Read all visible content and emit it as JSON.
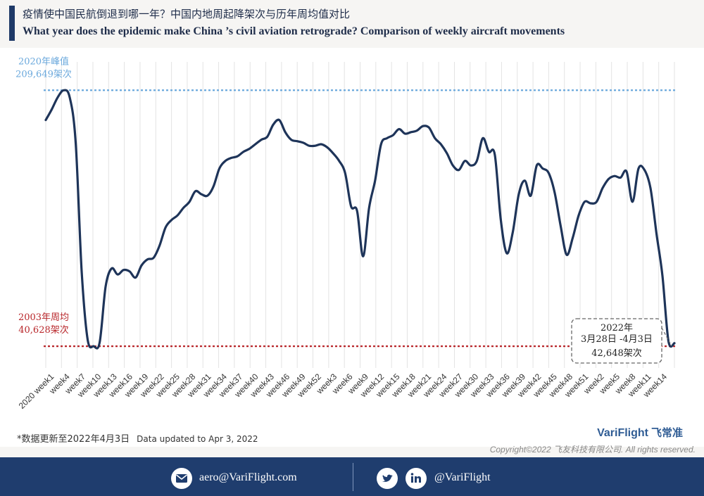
{
  "header": {
    "title_cn": "疫情使中国民航倒退到哪一年？中国内地周起降架次与历年周均值对比",
    "title_en": "What year does the epidemic make China ’s civil aviation retrograde? Comparison of weekly aircraft movements"
  },
  "chart_data": {
    "type": "line",
    "title": "",
    "xlabel": "",
    "ylabel": "",
    "ylim": [
      30000,
      220000
    ],
    "grid": "vertical",
    "x_tick_labels": [
      "2020 week1",
      "week4",
      "week7",
      "week10",
      "week13",
      "week16",
      "week19",
      "week22",
      "week25",
      "week28",
      "week31",
      "week34",
      "week37",
      "week40",
      "week43",
      "week46",
      "week49",
      "week52",
      "week3",
      "week6",
      "week9",
      "week12",
      "week15",
      "week18",
      "week21",
      "week24",
      "week27",
      "week30",
      "week33",
      "week36",
      "week39",
      "week42",
      "week45",
      "week48",
      "week51",
      "week2",
      "week5",
      "week8",
      "week11",
      "week14"
    ],
    "series": [
      {
        "name": "",
        "color": "#1e3459",
        "values": [
          190000,
          197000,
          205000,
          209649,
          205000,
          175000,
          90000,
          45000,
          40628,
          43000,
          80000,
          92000,
          88000,
          91000,
          90000,
          86000,
          94000,
          98000,
          99000,
          107000,
          119000,
          124000,
          127000,
          132000,
          136000,
          143000,
          141000,
          140000,
          146000,
          158000,
          163000,
          165000,
          166000,
          169000,
          171000,
          174000,
          177000,
          179000,
          187000,
          190000,
          182000,
          177000,
          176000,
          175000,
          173000,
          173000,
          174000,
          172000,
          168000,
          163000,
          155000,
          133000,
          130000,
          100000,
          132000,
          150000,
          174000,
          178000,
          180000,
          184000,
          181000,
          182000,
          183000,
          186000,
          185000,
          178000,
          174000,
          168000,
          160000,
          157000,
          163000,
          160000,
          163000,
          178000,
          169000,
          167000,
          124000,
          102000,
          116000,
          141000,
          150000,
          140000,
          160000,
          158000,
          155000,
          142000,
          120000,
          101000,
          112000,
          127000,
          136000,
          135000,
          136000,
          145000,
          151000,
          153000,
          152000,
          156000,
          136000,
          158000,
          157000,
          145000,
          115000,
          87000,
          44000,
          42648
        ]
      }
    ],
    "reference_lines": [
      {
        "label_line1": "2020年峰值",
        "label_line2": "209,649架次",
        "value": 209649,
        "color": "#6aa8dc"
      },
      {
        "label_line1": "2003年周均",
        "label_line2": "40,628架次",
        "value": 40628,
        "color": "#b8262a"
      }
    ],
    "annotation": {
      "line1": "2022年",
      "line2": "3月28日 -4月3日",
      "line3": "42,648架次",
      "point_value": 42648
    }
  },
  "footer": {
    "note_cn": "*数据更新至2022年4月3日",
    "note_en": "Data updated to Apr 3, 2022",
    "brand": "VariFlight",
    "brand_cn": "飞常准",
    "copyright": "Copyright©2022 飞友科技有限公司. All rights reserved.",
    "email": "aero@VariFlight.com",
    "social": "@VariFlight",
    "icons": [
      "mail-icon",
      "twitter-icon",
      "linkedin-icon"
    ]
  }
}
